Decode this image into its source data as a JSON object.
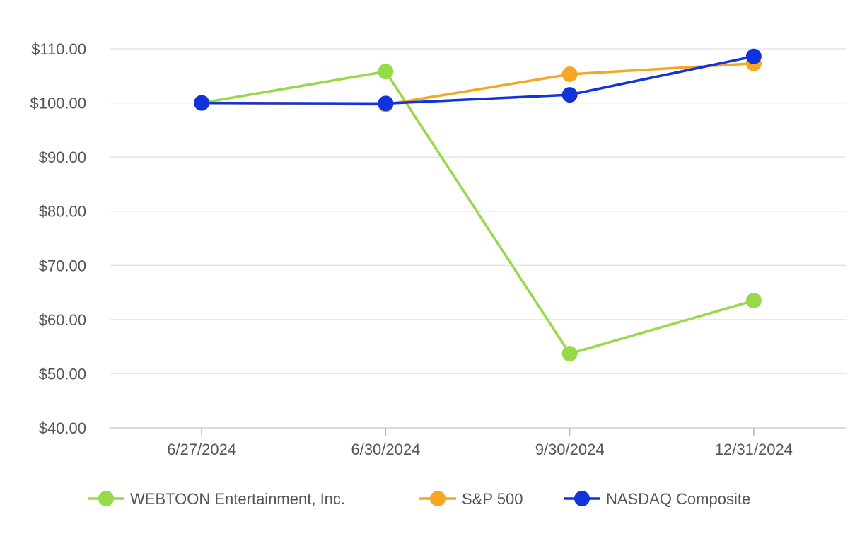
{
  "chart_data": {
    "type": "line",
    "title": "",
    "xlabel": "",
    "ylabel": "",
    "categories": [
      "6/27/2024",
      "6/30/2024",
      "9/30/2024",
      "12/31/2024"
    ],
    "ylim": [
      40,
      110
    ],
    "yticks": [
      40,
      50,
      60,
      70,
      80,
      90,
      100,
      110
    ],
    "ytick_labels": [
      "$40.00",
      "$50.00",
      "$60.00",
      "$70.00",
      "$80.00",
      "$90.00",
      "$100.00",
      "$110.00"
    ],
    "grid": true,
    "legend_position": "bottom",
    "series": [
      {
        "name": "WEBTOON Entertainment, Inc.",
        "color": "#96d949",
        "values": [
          100,
          105.8,
          53.7,
          63.5
        ]
      },
      {
        "name": "S&P 500",
        "color": "#f5a623",
        "values": [
          100,
          99.7,
          105.3,
          107.3
        ]
      },
      {
        "name": "NASDAQ Composite",
        "color": "#1232dc",
        "values": [
          100,
          99.9,
          101.5,
          108.6
        ]
      }
    ]
  }
}
